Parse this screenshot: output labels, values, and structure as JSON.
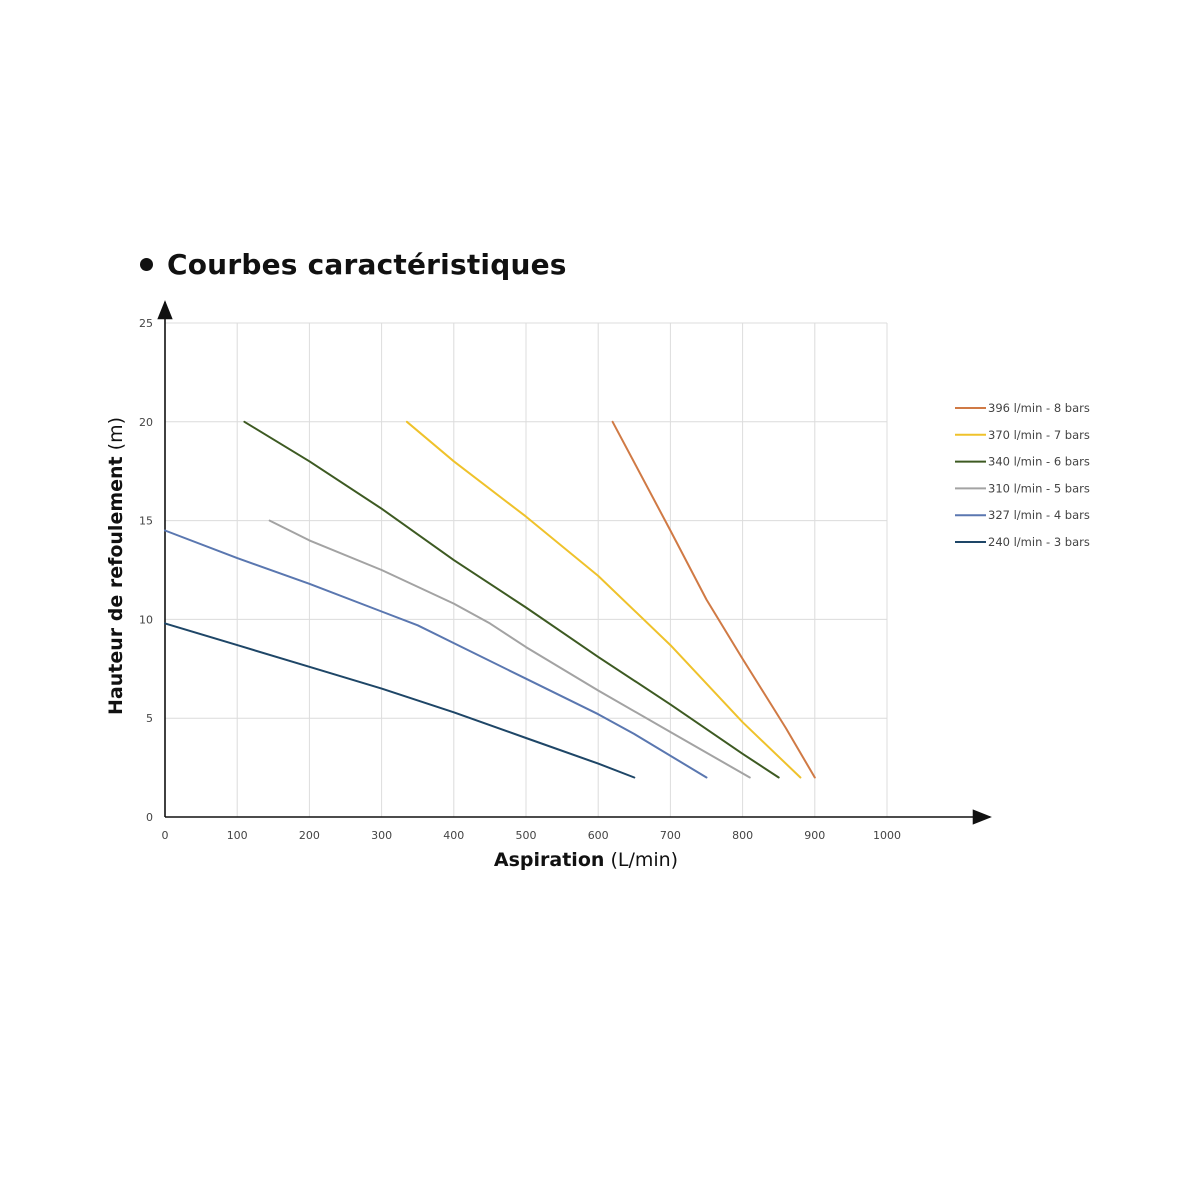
{
  "title": "Courbes caractéristiques",
  "chart_data": {
    "type": "line",
    "title": "Courbes caractéristiques",
    "xlabel": {
      "bold": "Aspiration",
      "unit": " (L/min)"
    },
    "ylabel": {
      "bold": "Hauteur de refoulement",
      "unit": " (m)"
    },
    "xlim": [
      0,
      1000
    ],
    "ylim": [
      0,
      25
    ],
    "xticks": [
      0,
      100,
      200,
      300,
      400,
      500,
      600,
      700,
      800,
      900,
      1000
    ],
    "yticks": [
      0,
      5,
      10,
      15,
      20,
      25
    ],
    "grid": true,
    "legend_position": "right",
    "series": [
      {
        "name": "396 l/min - 8 bars",
        "color": "#d07a45",
        "x": [
          620,
          700,
          750,
          800,
          860,
          900
        ],
        "y": [
          20,
          14.5,
          11,
          8,
          4.5,
          2
        ]
      },
      {
        "name": "370 l/min - 7 bars",
        "color": "#efc22b",
        "x": [
          335,
          400,
          500,
          600,
          700,
          800,
          880
        ],
        "y": [
          20,
          18,
          15.2,
          12.2,
          8.7,
          4.8,
          2
        ]
      },
      {
        "name": "340 l/min - 6 bars",
        "color": "#3d5a22",
        "x": [
          110,
          200,
          300,
          400,
          500,
          600,
          700,
          800,
          850
        ],
        "y": [
          20,
          18,
          15.6,
          13,
          10.6,
          8.1,
          5.7,
          3.2,
          2
        ]
      },
      {
        "name": "310 l/min - 5 bars",
        "color": "#a3a3a3",
        "x": [
          145,
          200,
          300,
          400,
          450,
          500,
          600,
          700,
          810
        ],
        "y": [
          15,
          14,
          12.5,
          10.8,
          9.8,
          8.6,
          6.4,
          4.3,
          2
        ]
      },
      {
        "name": "327 l/min - 4 bars",
        "color": "#5a77b0",
        "x": [
          0,
          100,
          200,
          300,
          350,
          400,
          500,
          600,
          650,
          750
        ],
        "y": [
          14.5,
          13.1,
          11.8,
          10.4,
          9.7,
          8.8,
          7,
          5.2,
          4.2,
          2
        ]
      },
      {
        "name": "240 l/min - 3 bars",
        "color": "#1e4667",
        "x": [
          0,
          100,
          200,
          300,
          400,
          500,
          600,
          650
        ],
        "y": [
          9.8,
          8.7,
          7.6,
          6.5,
          5.3,
          4,
          2.7,
          2
        ]
      }
    ]
  }
}
